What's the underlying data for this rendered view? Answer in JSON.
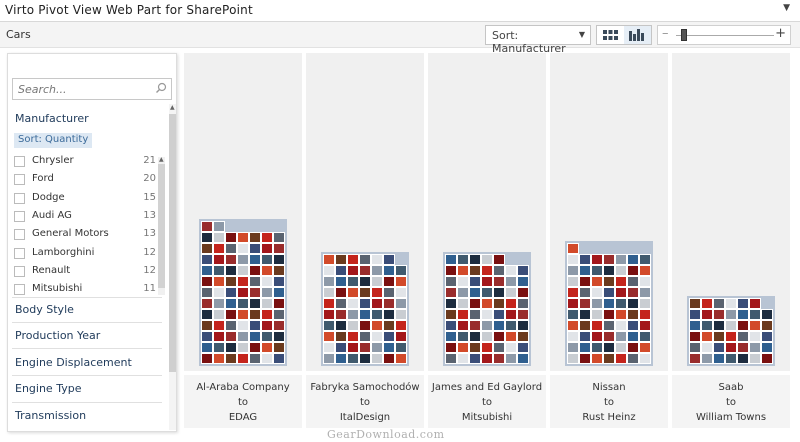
{
  "window": {
    "title": "Virto Pivot View Web Part for SharePoint",
    "menu_icon": "chevron-down-icon"
  },
  "toolbar": {
    "breadcrumb": "Cars",
    "sort_label": "Sort: Manufacturer",
    "grid_view_icon": "grid-view-icon",
    "bar_view_icon": "bar-view-icon",
    "zoom_minus": "–",
    "zoom_plus": "+",
    "zoom_level": 0.05
  },
  "sidebar": {
    "search_placeholder": "Search...",
    "facets": [
      {
        "title": "Manufacturer",
        "sort": "Sort: Quantity",
        "items": [
          {
            "label": "Chrysler",
            "count": "21"
          },
          {
            "label": "Ford",
            "count": "20"
          },
          {
            "label": "Dodge",
            "count": "15"
          },
          {
            "label": "Audi AG",
            "count": "13"
          },
          {
            "label": "General Motors",
            "count": "13"
          },
          {
            "label": "Lamborghini",
            "count": "12"
          },
          {
            "label": "Renault",
            "count": "12"
          },
          {
            "label": "Mitsubishi",
            "count": "11"
          }
        ]
      },
      {
        "title": "Body Style"
      },
      {
        "title": "Production Year"
      },
      {
        "title": "Engine Displacement"
      },
      {
        "title": "Engine Type"
      },
      {
        "title": "Transmission"
      }
    ]
  },
  "columns": [
    {
      "label": [
        "Al-Araba Company",
        "to",
        "EDAG"
      ],
      "count": 86
    },
    {
      "label": [
        "Fabryka Samochodów",
        "to",
        "ItalDesign"
      ],
      "count": 69
    },
    {
      "label": [
        "James and Ed Gaylord",
        "to",
        "Mitsubishi"
      ],
      "count": 68
    },
    {
      "label": [
        "Nissan",
        "to",
        "Rust Heinz"
      ],
      "count": 71
    },
    {
      "label": [
        "Saab",
        "to",
        "William Towns"
      ],
      "count": 41
    }
  ],
  "watermark": "GearDownload.com",
  "colors": {
    "bar_view_active": "#e6eef6",
    "sort_chip": "#dde8f3",
    "facet_title": "#1f3a5a",
    "stack_bg": "#b8c4d4"
  }
}
